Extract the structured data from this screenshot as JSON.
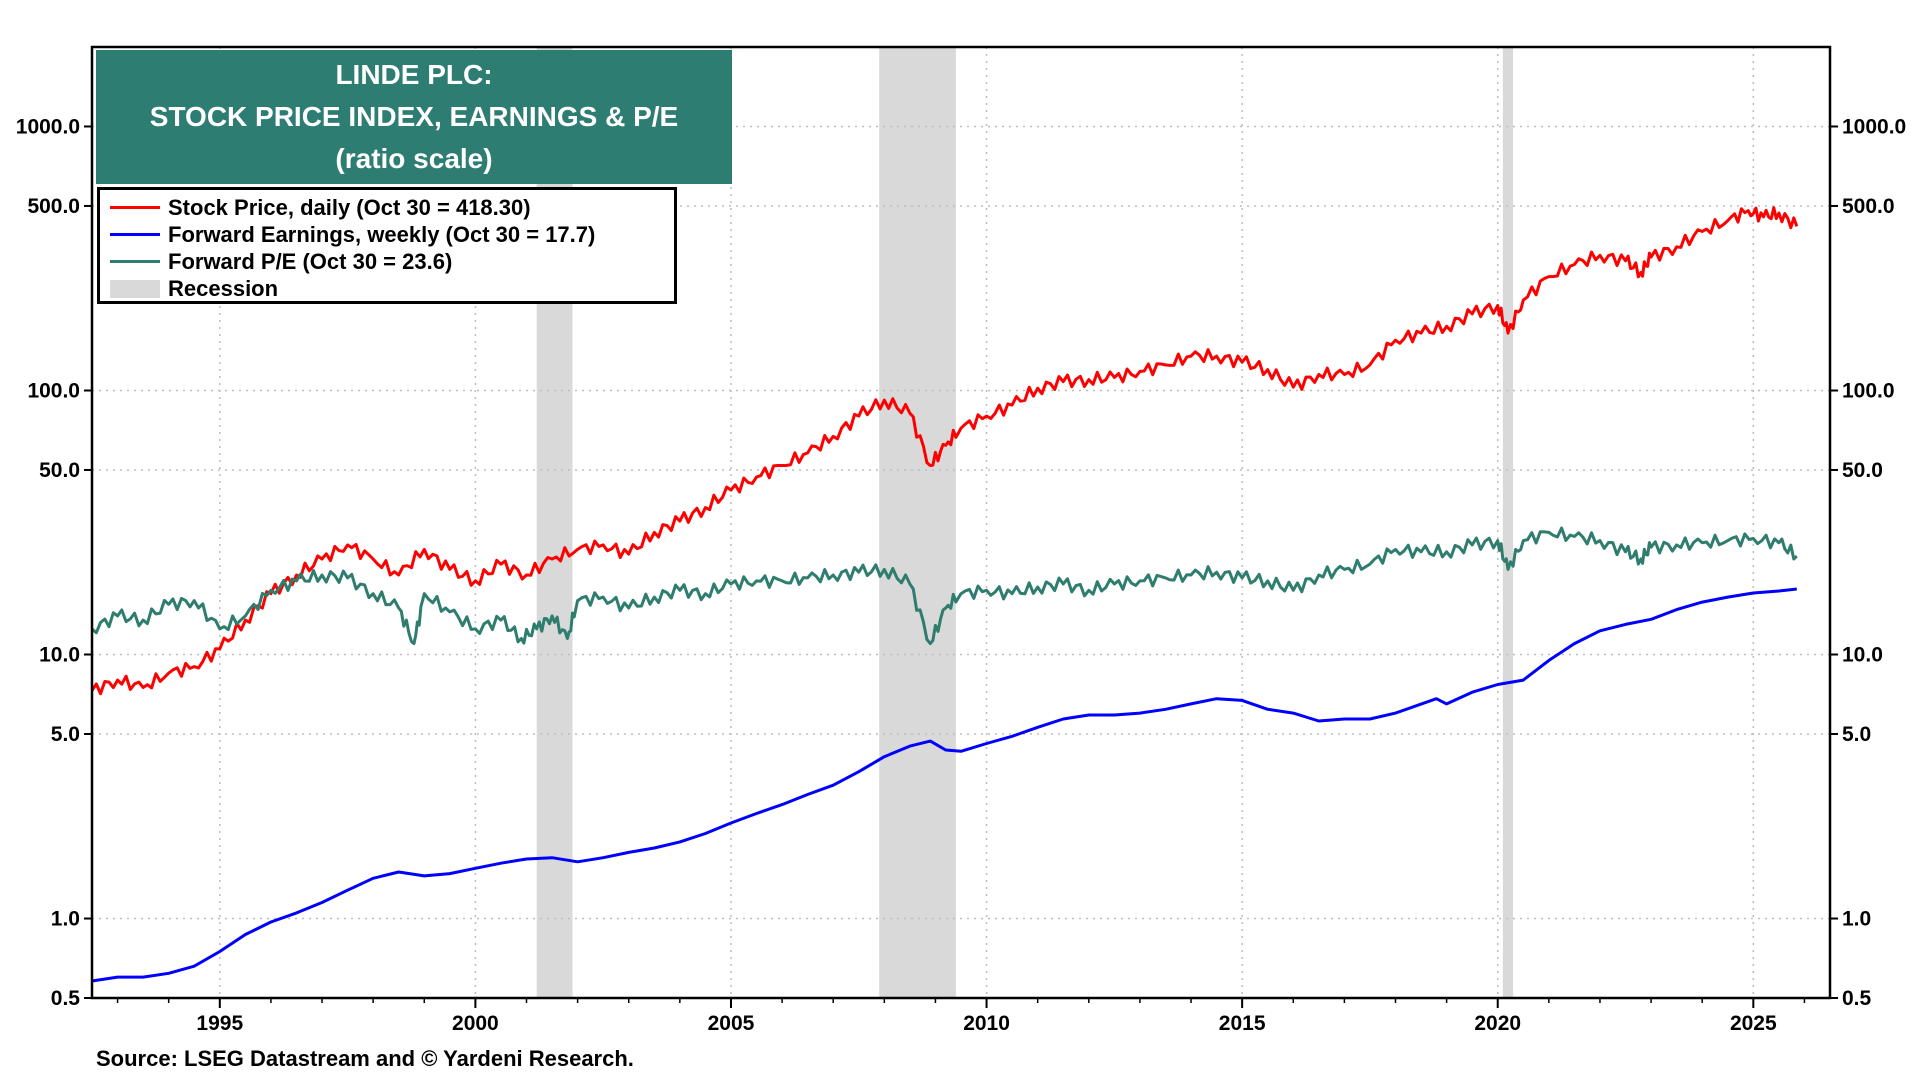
{
  "chart_data": {
    "type": "line",
    "title_lines": [
      "LINDE PLC:",
      "STOCK PRICE INDEX, EARNINGS & P/E",
      "(ratio scale)"
    ],
    "source": "Source: LSEG Datastream and © Yardeni Research.",
    "y_scale": "log",
    "ylim": [
      0.5,
      2000
    ],
    "y_ticks": [
      0.5,
      1.0,
      5.0,
      10.0,
      50.0,
      100.0,
      500.0,
      1000.0
    ],
    "y_tick_labels": [
      "0.5",
      "1.0",
      "5.0",
      "10.0",
      "50.0",
      "100.0",
      "500.0",
      "1000.0"
    ],
    "xlim": [
      1992.5,
      2026.5
    ],
    "x_ticks": [
      1995,
      2000,
      2005,
      2010,
      2015,
      2020,
      2025
    ],
    "x_tick_labels": [
      "1995",
      "2000",
      "2005",
      "2010",
      "2015",
      "2020",
      "2025"
    ],
    "grid": true,
    "legend_placement": "top-left",
    "colors": {
      "title_bg": "#2e7d72",
      "recession": "#d9d9d9"
    },
    "recessions": [
      {
        "start": 2001.2,
        "end": 2001.9
      },
      {
        "start": 2007.9,
        "end": 2009.4
      },
      {
        "start": 2020.1,
        "end": 2020.3
      }
    ],
    "legend": [
      {
        "label": "Stock Price, daily (Oct 30 = 418.30)",
        "color": "#ff0000",
        "kind": "line"
      },
      {
        "label": "Forward Earnings, weekly (Oct 30 = 17.7)",
        "color": "#0000ff",
        "kind": "line"
      },
      {
        "label": "Forward P/E (Oct 30 = 23.6)",
        "color": "#2e7d6e",
        "kind": "line"
      },
      {
        "label": "Recession",
        "color": "#d9d9d9",
        "kind": "bar"
      }
    ],
    "series": [
      {
        "name": "Stock Price, daily (Oct 30 = 418.30)",
        "color": "#ff0000",
        "x": [
          1992.5,
          1993.0,
          1993.5,
          1994.0,
          1994.5,
          1995.0,
          1995.5,
          1996.0,
          1996.5,
          1997.0,
          1997.5,
          1998.0,
          1998.5,
          1999.0,
          1999.5,
          2000.0,
          2000.5,
          2001.0,
          2001.5,
          2002.0,
          2002.5,
          2003.0,
          2003.5,
          2004.0,
          2004.5,
          2005.0,
          2005.5,
          2006.0,
          2006.5,
          2007.0,
          2007.5,
          2008.0,
          2008.5,
          2008.9,
          2009.2,
          2009.5,
          2010.0,
          2010.5,
          2011.0,
          2011.5,
          2012.0,
          2012.5,
          2013.0,
          2013.5,
          2014.0,
          2014.5,
          2015.0,
          2015.5,
          2016.0,
          2016.5,
          2017.0,
          2017.5,
          2018.0,
          2018.5,
          2019.0,
          2019.5,
          2020.0,
          2020.2,
          2020.5,
          2021.0,
          2021.5,
          2022.0,
          2022.5,
          2022.8,
          2023.0,
          2023.5,
          2024.0,
          2024.5,
          2024.9,
          2025.2,
          2025.5,
          2025.85
        ],
        "values": [
          7.3,
          8.0,
          7.5,
          8.5,
          9.0,
          10.5,
          13.5,
          17.0,
          20.0,
          23.0,
          26.0,
          23.0,
          20.0,
          25.0,
          21.0,
          19.0,
          22.0,
          20.0,
          23.0,
          25.0,
          26.0,
          24.0,
          29.0,
          32.0,
          36.0,
          42.0,
          47.0,
          52.0,
          58.0,
          67.0,
          80.0,
          92.0,
          82.0,
          52.0,
          62.0,
          72.0,
          80.0,
          88.0,
          102.0,
          108.0,
          110.0,
          112.0,
          118.0,
          125.0,
          135.0,
          135.0,
          128.0,
          120.0,
          103.0,
          115.0,
          115.0,
          125.0,
          155.0,
          165.0,
          175.0,
          195.0,
          210.0,
          165.0,
          220.0,
          270.0,
          300.0,
          325.0,
          310.0,
          280.0,
          320.0,
          350.0,
          400.0,
          440.0,
          480.0,
          455.0,
          470.0,
          418.3
        ]
      },
      {
        "name": "Forward Earnings, weekly (Oct 30 = 17.7)",
        "color": "#0000ff",
        "x": [
          1992.5,
          1993.0,
          1993.5,
          1994.0,
          1994.5,
          1995.0,
          1995.5,
          1996.0,
          1996.5,
          1997.0,
          1997.5,
          1998.0,
          1998.5,
          1999.0,
          1999.5,
          2000.0,
          2000.5,
          2001.0,
          2001.5,
          2002.0,
          2002.5,
          2003.0,
          2003.5,
          2004.0,
          2004.5,
          2005.0,
          2005.5,
          2006.0,
          2006.5,
          2007.0,
          2007.5,
          2008.0,
          2008.5,
          2008.9,
          2009.2,
          2009.5,
          2010.0,
          2010.5,
          2011.0,
          2011.5,
          2012.0,
          2012.5,
          2013.0,
          2013.5,
          2014.0,
          2014.5,
          2015.0,
          2015.5,
          2016.0,
          2016.5,
          2017.0,
          2017.5,
          2018.0,
          2018.8,
          2019.0,
          2019.5,
          2020.0,
          2020.5,
          2021.0,
          2021.5,
          2022.0,
          2022.5,
          2023.0,
          2023.5,
          2024.0,
          2024.5,
          2025.0,
          2025.5,
          2025.85
        ],
        "values": [
          0.58,
          0.6,
          0.6,
          0.62,
          0.66,
          0.75,
          0.87,
          0.97,
          1.05,
          1.15,
          1.28,
          1.42,
          1.5,
          1.45,
          1.48,
          1.55,
          1.62,
          1.68,
          1.7,
          1.64,
          1.7,
          1.78,
          1.85,
          1.95,
          2.1,
          2.3,
          2.5,
          2.7,
          2.95,
          3.2,
          3.6,
          4.1,
          4.5,
          4.7,
          4.35,
          4.3,
          4.6,
          4.9,
          5.3,
          5.7,
          5.9,
          5.9,
          6.0,
          6.2,
          6.5,
          6.8,
          6.7,
          6.2,
          6.0,
          5.6,
          5.7,
          5.7,
          6.0,
          6.8,
          6.5,
          7.2,
          7.7,
          8.0,
          9.5,
          11.0,
          12.3,
          13.0,
          13.6,
          14.8,
          15.8,
          16.5,
          17.1,
          17.4,
          17.7
        ]
      },
      {
        "name": "Forward P/E (Oct 30 = 23.6)",
        "color": "#2e7d6e",
        "x": [
          1992.5,
          1993.0,
          1993.5,
          1994.0,
          1994.5,
          1995.0,
          1995.5,
          1996.0,
          1996.5,
          1997.0,
          1997.5,
          1998.0,
          1998.5,
          1998.8,
          1999.0,
          1999.5,
          2000.0,
          2000.5,
          2000.9,
          2001.2,
          2001.5,
          2001.8,
          2002.0,
          2002.5,
          2003.0,
          2003.5,
          2004.0,
          2004.5,
          2005.0,
          2005.5,
          2006.0,
          2006.5,
          2007.0,
          2007.5,
          2008.0,
          2008.5,
          2008.9,
          2009.2,
          2009.5,
          2010.0,
          2010.5,
          2011.0,
          2011.5,
          2012.0,
          2012.5,
          2013.0,
          2013.5,
          2014.0,
          2014.5,
          2015.0,
          2015.5,
          2016.0,
          2016.5,
          2017.0,
          2017.5,
          2018.0,
          2018.5,
          2019.0,
          2019.5,
          2020.0,
          2020.2,
          2020.5,
          2021.0,
          2021.5,
          2022.0,
          2022.5,
          2022.8,
          2023.0,
          2023.5,
          2024.0,
          2024.5,
          2025.0,
          2025.5,
          2025.85
        ],
        "values": [
          12.5,
          14.0,
          13.5,
          15.5,
          16.0,
          12.5,
          14.0,
          17.5,
          19.0,
          20.0,
          19.5,
          17.0,
          15.0,
          11.0,
          17.0,
          14.5,
          12.5,
          13.5,
          11.5,
          12.5,
          14.0,
          11.5,
          16.0,
          16.5,
          15.0,
          16.5,
          17.5,
          17.0,
          18.5,
          19.0,
          19.0,
          19.5,
          20.0,
          20.5,
          21.0,
          18.5,
          11.0,
          15.0,
          17.0,
          17.5,
          17.0,
          18.0,
          18.5,
          17.5,
          18.5,
          19.0,
          19.5,
          20.0,
          20.5,
          19.5,
          19.0,
          17.5,
          20.0,
          21.0,
          22.0,
          25.0,
          24.5,
          24.5,
          26.0,
          27.0,
          21.0,
          27.0,
          29.0,
          28.0,
          27.0,
          24.5,
          23.0,
          25.5,
          26.0,
          26.5,
          27.0,
          27.5,
          26.5,
          23.6
        ]
      }
    ]
  }
}
